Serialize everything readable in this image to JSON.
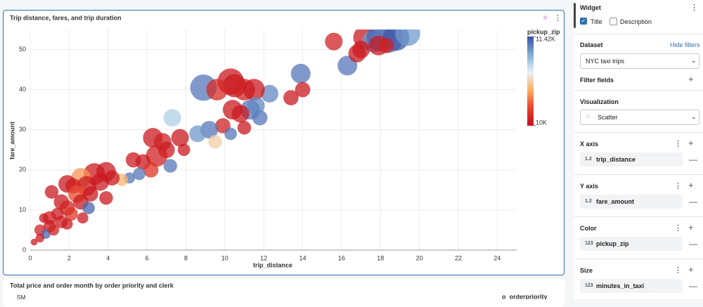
{
  "chart_data": {
    "type": "scatter",
    "title": "Trip distance, fares, and trip duration",
    "x_label": "trip_distance",
    "y_label": "fare_amount",
    "xlim": [
      0,
      25
    ],
    "ylim": [
      0,
      55
    ],
    "xticks": [
      0,
      2,
      4,
      6,
      8,
      10,
      12,
      14,
      16,
      18,
      20,
      22,
      24
    ],
    "yticks": [
      0,
      10,
      20,
      30,
      40,
      50
    ],
    "grid": true,
    "x": [
      15.6,
      16.3,
      16.8,
      17.2,
      17.6,
      18,
      18.4,
      18.8,
      19.4,
      17.9,
      17,
      18.3,
      13.9,
      14,
      13.4,
      12.3,
      10.3,
      10.5,
      11,
      11.5,
      8.9,
      9.6,
      7.3,
      11.3,
      11.8,
      11.6,
      10.4,
      10.8,
      9.9,
      10.3,
      11,
      9.2,
      8.6,
      9.5,
      7.7,
      6.3,
      6.8,
      7,
      7.9,
      6.5,
      5.3,
      5.8,
      7.2,
      6.2,
      5.6,
      5.1,
      4.7,
      3.9,
      3.3,
      2.6,
      3.6,
      4.2,
      2.9,
      2.2,
      1.9,
      1.1,
      2.4,
      3.1,
      2.6,
      3.9,
      1.6,
      1.9,
      3,
      2.1,
      1.4,
      1,
      1.6,
      0.7,
      1,
      0.5,
      0.8,
      0.5,
      0.2,
      1.2,
      1.9,
      2.7
    ],
    "values": [
      52,
      46,
      49,
      53,
      52,
      53,
      53,
      53,
      54,
      51,
      50,
      51,
      44,
      40,
      38,
      39,
      42,
      41,
      40,
      40,
      40.5,
      40,
      33,
      35,
      33,
      36,
      35,
      34,
      31,
      29,
      30.5,
      30,
      29,
      27,
      28,
      28,
      27,
      25,
      25,
      23.5,
      22.5,
      22,
      21,
      20,
      19,
      18,
      17.5,
      19.5,
      19,
      18,
      17,
      18,
      16,
      16,
      16.5,
      14.5,
      14,
      14,
      12,
      13,
      12,
      10.5,
      10.5,
      9,
      9,
      8,
      7,
      8,
      6,
      5,
      4,
      3,
      2,
      5,
      6.5,
      8
    ],
    "sizes": [
      20,
      25,
      20,
      35,
      30,
      50,
      60,
      45,
      40,
      25,
      20,
      15,
      25,
      15,
      15,
      20,
      45,
      35,
      30,
      30,
      45,
      30,
      20,
      25,
      15,
      20,
      25,
      20,
      15,
      10,
      12,
      20,
      18,
      12,
      20,
      25,
      20,
      18,
      10,
      30,
      15,
      15,
      12,
      15,
      10,
      8,
      10,
      25,
      30,
      25,
      20,
      15,
      25,
      15,
      20,
      12,
      20,
      15,
      15,
      12,
      15,
      15,
      10,
      12,
      10,
      12,
      10,
      6,
      10,
      8,
      6,
      5,
      3,
      8,
      8,
      8
    ],
    "color_values": [
      10100,
      11300,
      10050,
      10050,
      11200,
      11350,
      11300,
      11400,
      11200,
      10050,
      10050,
      10100,
      11300,
      10050,
      10050,
      11250,
      10050,
      10050,
      10100,
      10050,
      11300,
      10150,
      11000,
      11300,
      11300,
      11250,
      10050,
      10050,
      10100,
      11300,
      10050,
      11300,
      11200,
      10700,
      10050,
      10050,
      10100,
      10050,
      10050,
      10100,
      10050,
      10050,
      11300,
      10200,
      11300,
      11300,
      10600,
      10050,
      10050,
      10500,
      10050,
      10050,
      10050,
      10100,
      10050,
      10050,
      10300,
      10050,
      10050,
      10050,
      10050,
      10100,
      11350,
      10200,
      10050,
      10100,
      10050,
      10050,
      10050,
      10100,
      11350,
      10050,
      10050,
      10100,
      10050,
      10050
    ],
    "colorbar": {
      "title": "pickup_zip",
      "lim": [
        10000,
        11420
      ],
      "ticks": [
        {
          "value": 11420,
          "label": "11.42K"
        },
        {
          "value": 10000,
          "label": "10K"
        }
      ],
      "colors": [
        "#c2101e",
        "#e8432b",
        "#fdae61",
        "#e6f2f8",
        "#7eaed3",
        "#3a4fa5"
      ]
    }
  },
  "next_widget": {
    "title": "Total price and order month by order priority and clerk",
    "y_tick": "5M",
    "legend_title": "o_orderpriority"
  },
  "panel": {
    "widget": "Widget",
    "title_option": "Title",
    "description_option": "Description",
    "dataset_label": "Dataset",
    "hide_filters": "Hide filters",
    "dataset": "NYC taxi trips",
    "filter_fields": "Filter fields",
    "visualization_label": "Visualization",
    "visualization": "Scatter",
    "fields": [
      {
        "label": "X axis",
        "type": "1.2",
        "name": "trip_distance"
      },
      {
        "label": "Y axis",
        "type": "1.2",
        "name": "fare_amount"
      },
      {
        "label": "Color",
        "type": "123",
        "name": "pickup_zip"
      },
      {
        "label": "Size",
        "type": "123",
        "name": "minutes_in_taxi"
      }
    ]
  }
}
